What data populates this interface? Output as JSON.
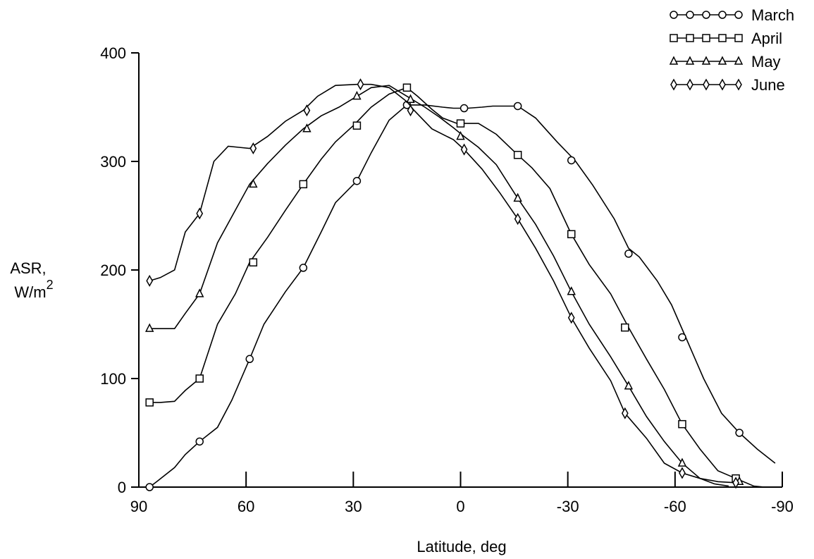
{
  "chart_data": {
    "type": "line",
    "title": "",
    "xlabel": "Latitude, deg",
    "ylabel_line1": "ASR,",
    "ylabel_line2": "W/m",
    "ylabel_sup": "2",
    "xlim": [
      90,
      -90
    ],
    "ylim": [
      0,
      400
    ],
    "xticks": [
      90,
      60,
      30,
      0,
      -30,
      -60,
      -90
    ],
    "yticks": [
      0,
      100,
      200,
      300,
      400
    ],
    "grid": false,
    "legend_position": "top-right",
    "series": [
      {
        "name": "March",
        "marker": "circle",
        "curve": [
          [
            87,
            0
          ],
          [
            85,
            5
          ],
          [
            80,
            18
          ],
          [
            77,
            30
          ],
          [
            73,
            42
          ],
          [
            68,
            55
          ],
          [
            64,
            80
          ],
          [
            59,
            118
          ],
          [
            55,
            150
          ],
          [
            49,
            180
          ],
          [
            44,
            202
          ],
          [
            39,
            235
          ],
          [
            35,
            262
          ],
          [
            29,
            282
          ],
          [
            25,
            308
          ],
          [
            20,
            338
          ],
          [
            15,
            352
          ],
          [
            10,
            352
          ],
          [
            5,
            350
          ],
          [
            2,
            349
          ],
          [
            -2,
            349
          ],
          [
            -6,
            350
          ],
          [
            -9,
            351
          ],
          [
            -16,
            351
          ],
          [
            -21,
            340
          ],
          [
            -27,
            318
          ],
          [
            -32,
            301
          ],
          [
            -37,
            278
          ],
          [
            -43,
            247
          ],
          [
            -47,
            220
          ],
          [
            -50,
            212
          ],
          [
            -55,
            190
          ],
          [
            -59,
            168
          ],
          [
            -63,
            138
          ],
          [
            -68,
            100
          ],
          [
            -73,
            68
          ],
          [
            -78,
            50
          ],
          [
            -83,
            35
          ],
          [
            -88,
            22
          ]
        ],
        "markers": [
          [
            87,
            0
          ],
          [
            73,
            42
          ],
          [
            59,
            118
          ],
          [
            44,
            202
          ],
          [
            29,
            282
          ],
          [
            15,
            352
          ],
          [
            -1,
            349
          ],
          [
            -16,
            351
          ],
          [
            -31,
            301
          ],
          [
            -47,
            215
          ],
          [
            -62,
            138
          ],
          [
            -78,
            50
          ]
        ]
      },
      {
        "name": "April",
        "marker": "square",
        "curve": [
          [
            87,
            78
          ],
          [
            84,
            78
          ],
          [
            80,
            79
          ],
          [
            77,
            89
          ],
          [
            73,
            100
          ],
          [
            68,
            150
          ],
          [
            63,
            178
          ],
          [
            59,
            207
          ],
          [
            54,
            230
          ],
          [
            49,
            255
          ],
          [
            44,
            279
          ],
          [
            39,
            302
          ],
          [
            35,
            318
          ],
          [
            30,
            333
          ],
          [
            25,
            350
          ],
          [
            20,
            362
          ],
          [
            15,
            368
          ],
          [
            12,
            360
          ],
          [
            8,
            348
          ],
          [
            5,
            340
          ],
          [
            1,
            335
          ],
          [
            -1,
            335
          ],
          [
            -5,
            335
          ],
          [
            -10,
            325
          ],
          [
            -16,
            306
          ],
          [
            -20,
            294
          ],
          [
            -25,
            275
          ],
          [
            -31,
            233
          ],
          [
            -36,
            205
          ],
          [
            -42,
            178
          ],
          [
            -47,
            147
          ],
          [
            -52,
            118
          ],
          [
            -57,
            90
          ],
          [
            -62,
            58
          ],
          [
            -67,
            35
          ],
          [
            -72,
            15
          ],
          [
            -77,
            8
          ],
          [
            -82,
            1
          ],
          [
            -85,
            0
          ]
        ],
        "markers": [
          [
            87,
            78
          ],
          [
            73,
            100
          ],
          [
            58,
            207
          ],
          [
            44,
            279
          ],
          [
            29,
            333
          ],
          [
            15,
            368
          ],
          [
            0,
            335
          ],
          [
            -16,
            306
          ],
          [
            -31,
            233
          ],
          [
            -46,
            147
          ],
          [
            -62,
            58
          ],
          [
            -77,
            8
          ]
        ]
      },
      {
        "name": "May",
        "marker": "triangle",
        "curve": [
          [
            87,
            146
          ],
          [
            84,
            146
          ],
          [
            80,
            146
          ],
          [
            77,
            160
          ],
          [
            73,
            178
          ],
          [
            68,
            225
          ],
          [
            63,
            255
          ],
          [
            59,
            279
          ],
          [
            54,
            298
          ],
          [
            49,
            315
          ],
          [
            44,
            330
          ],
          [
            39,
            342
          ],
          [
            34,
            350
          ],
          [
            29,
            360
          ],
          [
            25,
            368
          ],
          [
            20,
            370
          ],
          [
            15,
            360
          ],
          [
            10,
            350
          ],
          [
            6,
            341
          ],
          [
            2,
            331
          ],
          [
            -1,
            323
          ],
          [
            -5,
            313
          ],
          [
            -10,
            297
          ],
          [
            -16,
            266
          ],
          [
            -21,
            242
          ],
          [
            -26,
            213
          ],
          [
            -31,
            180
          ],
          [
            -36,
            150
          ],
          [
            -42,
            120
          ],
          [
            -47,
            93
          ],
          [
            -52,
            65
          ],
          [
            -57,
            42
          ],
          [
            -62,
            22
          ],
          [
            -67,
            8
          ],
          [
            -71,
            3
          ],
          [
            -75,
            1
          ]
        ],
        "markers": [
          [
            87,
            146
          ],
          [
            73,
            178
          ],
          [
            58,
            279
          ],
          [
            43,
            330
          ],
          [
            29,
            360
          ],
          [
            14,
            357
          ],
          [
            0,
            323
          ],
          [
            -16,
            266
          ],
          [
            -31,
            180
          ],
          [
            -47,
            93
          ],
          [
            -62,
            22
          ],
          [
            -78,
            5
          ]
        ]
      },
      {
        "name": "June",
        "marker": "diamond",
        "curve": [
          [
            87,
            190
          ],
          [
            84,
            193
          ],
          [
            80,
            200
          ],
          [
            77,
            235
          ],
          [
            73,
            252
          ],
          [
            69,
            300
          ],
          [
            65,
            314
          ],
          [
            62,
            313
          ],
          [
            59,
            312
          ],
          [
            54,
            323
          ],
          [
            49,
            337
          ],
          [
            44,
            347
          ],
          [
            40,
            360
          ],
          [
            35,
            370
          ],
          [
            29,
            371
          ],
          [
            25,
            371
          ],
          [
            20,
            368
          ],
          [
            15,
            355
          ],
          [
            13,
            347
          ],
          [
            8,
            330
          ],
          [
            2,
            320
          ],
          [
            -1,
            311
          ],
          [
            -6,
            293
          ],
          [
            -11,
            271
          ],
          [
            -16,
            247
          ],
          [
            -21,
            220
          ],
          [
            -26,
            190
          ],
          [
            -31,
            156
          ],
          [
            -36,
            128
          ],
          [
            -42,
            98
          ],
          [
            -46,
            68
          ],
          [
            -52,
            45
          ],
          [
            -57,
            22
          ],
          [
            -62,
            13
          ],
          [
            -67,
            8
          ],
          [
            -72,
            5
          ],
          [
            -77,
            4
          ]
        ],
        "markers": [
          [
            87,
            190
          ],
          [
            73,
            252
          ],
          [
            58,
            312
          ],
          [
            43,
            347
          ],
          [
            28,
            371
          ],
          [
            14,
            347
          ],
          [
            -1,
            311
          ],
          [
            -16,
            247
          ],
          [
            -31,
            156
          ],
          [
            -46,
            68
          ],
          [
            -62,
            13
          ],
          [
            -77,
            4
          ]
        ]
      }
    ]
  }
}
